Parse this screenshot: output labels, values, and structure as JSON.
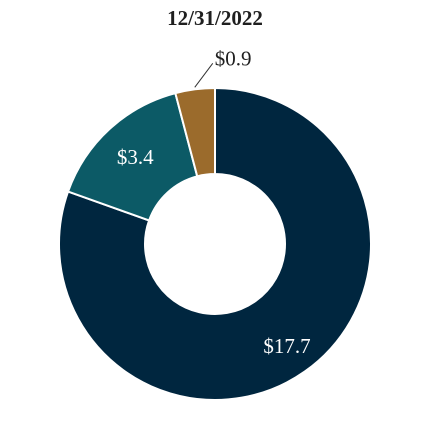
{
  "chart_data": {
    "type": "pie",
    "title": "12/31/2022",
    "donut": true,
    "categories": [
      "$17.7",
      "$3.4",
      "$0.9"
    ],
    "values": [
      17.7,
      3.4,
      0.9
    ],
    "labels": [
      "$17.7",
      "$3.4",
      "$0.9"
    ],
    "colors": [
      "#00263f",
      "#0c5a66",
      "#9b6b2c"
    ],
    "label_colors": [
      "#ffffff",
      "#ffffff",
      "#1f1f1f"
    ]
  }
}
